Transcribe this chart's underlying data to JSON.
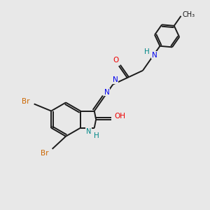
{
  "background_color": "#e8e8e8",
  "bond_color": "#1a1a1a",
  "n_color": "#0000ee",
  "o_color": "#ee0000",
  "br_color": "#cc6600",
  "nh_color": "#008888",
  "figsize": [
    3.0,
    3.0
  ],
  "dpi": 100,
  "xlim": [
    0,
    10
  ],
  "ylim": [
    0,
    10
  ]
}
